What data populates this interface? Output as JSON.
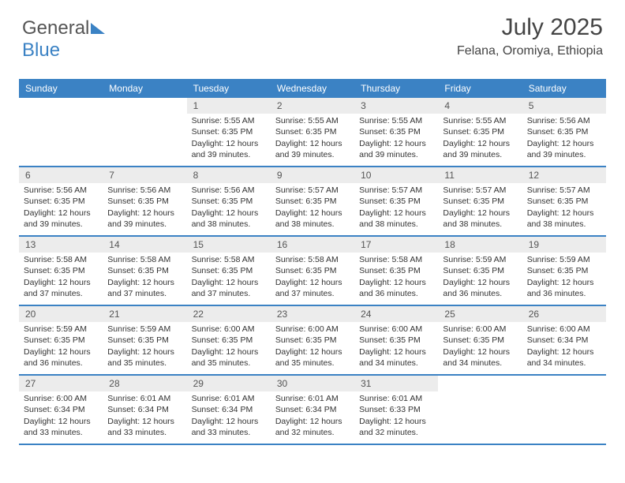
{
  "logo": {
    "text1": "General",
    "text2": "Blue"
  },
  "header": {
    "title": "July 2025",
    "subtitle": "Felana, Oromiya, Ethiopia"
  },
  "colors": {
    "header_bg": "#3b82c4",
    "header_text": "#ffffff",
    "daynum_bg": "#ececec",
    "border": "#3b82c4",
    "page_bg": "#ffffff",
    "text": "#333333"
  },
  "day_headers": [
    "Sunday",
    "Monday",
    "Tuesday",
    "Wednesday",
    "Thursday",
    "Friday",
    "Saturday"
  ],
  "weeks": [
    [
      {
        "empty": true
      },
      {
        "empty": true
      },
      {
        "num": "1",
        "sunrise": "Sunrise: 5:55 AM",
        "sunset": "Sunset: 6:35 PM",
        "daylight": "Daylight: 12 hours and 39 minutes."
      },
      {
        "num": "2",
        "sunrise": "Sunrise: 5:55 AM",
        "sunset": "Sunset: 6:35 PM",
        "daylight": "Daylight: 12 hours and 39 minutes."
      },
      {
        "num": "3",
        "sunrise": "Sunrise: 5:55 AM",
        "sunset": "Sunset: 6:35 PM",
        "daylight": "Daylight: 12 hours and 39 minutes."
      },
      {
        "num": "4",
        "sunrise": "Sunrise: 5:55 AM",
        "sunset": "Sunset: 6:35 PM",
        "daylight": "Daylight: 12 hours and 39 minutes."
      },
      {
        "num": "5",
        "sunrise": "Sunrise: 5:56 AM",
        "sunset": "Sunset: 6:35 PM",
        "daylight": "Daylight: 12 hours and 39 minutes."
      }
    ],
    [
      {
        "num": "6",
        "sunrise": "Sunrise: 5:56 AM",
        "sunset": "Sunset: 6:35 PM",
        "daylight": "Daylight: 12 hours and 39 minutes."
      },
      {
        "num": "7",
        "sunrise": "Sunrise: 5:56 AM",
        "sunset": "Sunset: 6:35 PM",
        "daylight": "Daylight: 12 hours and 39 minutes."
      },
      {
        "num": "8",
        "sunrise": "Sunrise: 5:56 AM",
        "sunset": "Sunset: 6:35 PM",
        "daylight": "Daylight: 12 hours and 38 minutes."
      },
      {
        "num": "9",
        "sunrise": "Sunrise: 5:57 AM",
        "sunset": "Sunset: 6:35 PM",
        "daylight": "Daylight: 12 hours and 38 minutes."
      },
      {
        "num": "10",
        "sunrise": "Sunrise: 5:57 AM",
        "sunset": "Sunset: 6:35 PM",
        "daylight": "Daylight: 12 hours and 38 minutes."
      },
      {
        "num": "11",
        "sunrise": "Sunrise: 5:57 AM",
        "sunset": "Sunset: 6:35 PM",
        "daylight": "Daylight: 12 hours and 38 minutes."
      },
      {
        "num": "12",
        "sunrise": "Sunrise: 5:57 AM",
        "sunset": "Sunset: 6:35 PM",
        "daylight": "Daylight: 12 hours and 38 minutes."
      }
    ],
    [
      {
        "num": "13",
        "sunrise": "Sunrise: 5:58 AM",
        "sunset": "Sunset: 6:35 PM",
        "daylight": "Daylight: 12 hours and 37 minutes."
      },
      {
        "num": "14",
        "sunrise": "Sunrise: 5:58 AM",
        "sunset": "Sunset: 6:35 PM",
        "daylight": "Daylight: 12 hours and 37 minutes."
      },
      {
        "num": "15",
        "sunrise": "Sunrise: 5:58 AM",
        "sunset": "Sunset: 6:35 PM",
        "daylight": "Daylight: 12 hours and 37 minutes."
      },
      {
        "num": "16",
        "sunrise": "Sunrise: 5:58 AM",
        "sunset": "Sunset: 6:35 PM",
        "daylight": "Daylight: 12 hours and 37 minutes."
      },
      {
        "num": "17",
        "sunrise": "Sunrise: 5:58 AM",
        "sunset": "Sunset: 6:35 PM",
        "daylight": "Daylight: 12 hours and 36 minutes."
      },
      {
        "num": "18",
        "sunrise": "Sunrise: 5:59 AM",
        "sunset": "Sunset: 6:35 PM",
        "daylight": "Daylight: 12 hours and 36 minutes."
      },
      {
        "num": "19",
        "sunrise": "Sunrise: 5:59 AM",
        "sunset": "Sunset: 6:35 PM",
        "daylight": "Daylight: 12 hours and 36 minutes."
      }
    ],
    [
      {
        "num": "20",
        "sunrise": "Sunrise: 5:59 AM",
        "sunset": "Sunset: 6:35 PM",
        "daylight": "Daylight: 12 hours and 36 minutes."
      },
      {
        "num": "21",
        "sunrise": "Sunrise: 5:59 AM",
        "sunset": "Sunset: 6:35 PM",
        "daylight": "Daylight: 12 hours and 35 minutes."
      },
      {
        "num": "22",
        "sunrise": "Sunrise: 6:00 AM",
        "sunset": "Sunset: 6:35 PM",
        "daylight": "Daylight: 12 hours and 35 minutes."
      },
      {
        "num": "23",
        "sunrise": "Sunrise: 6:00 AM",
        "sunset": "Sunset: 6:35 PM",
        "daylight": "Daylight: 12 hours and 35 minutes."
      },
      {
        "num": "24",
        "sunrise": "Sunrise: 6:00 AM",
        "sunset": "Sunset: 6:35 PM",
        "daylight": "Daylight: 12 hours and 34 minutes."
      },
      {
        "num": "25",
        "sunrise": "Sunrise: 6:00 AM",
        "sunset": "Sunset: 6:35 PM",
        "daylight": "Daylight: 12 hours and 34 minutes."
      },
      {
        "num": "26",
        "sunrise": "Sunrise: 6:00 AM",
        "sunset": "Sunset: 6:34 PM",
        "daylight": "Daylight: 12 hours and 34 minutes."
      }
    ],
    [
      {
        "num": "27",
        "sunrise": "Sunrise: 6:00 AM",
        "sunset": "Sunset: 6:34 PM",
        "daylight": "Daylight: 12 hours and 33 minutes."
      },
      {
        "num": "28",
        "sunrise": "Sunrise: 6:01 AM",
        "sunset": "Sunset: 6:34 PM",
        "daylight": "Daylight: 12 hours and 33 minutes."
      },
      {
        "num": "29",
        "sunrise": "Sunrise: 6:01 AM",
        "sunset": "Sunset: 6:34 PM",
        "daylight": "Daylight: 12 hours and 33 minutes."
      },
      {
        "num": "30",
        "sunrise": "Sunrise: 6:01 AM",
        "sunset": "Sunset: 6:34 PM",
        "daylight": "Daylight: 12 hours and 32 minutes."
      },
      {
        "num": "31",
        "sunrise": "Sunrise: 6:01 AM",
        "sunset": "Sunset: 6:33 PM",
        "daylight": "Daylight: 12 hours and 32 minutes."
      },
      {
        "empty": true
      },
      {
        "empty": true
      }
    ]
  ]
}
